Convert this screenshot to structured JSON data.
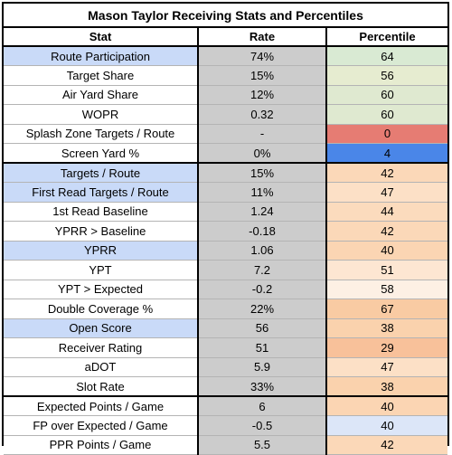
{
  "title": "Mason Taylor Receiving Stats and Percentiles",
  "headers": {
    "stat": "Stat",
    "rate": "Rate",
    "percentile": "Percentile"
  },
  "rows": [
    {
      "stat": "Route Participation",
      "rate": "74%",
      "percentile": "64",
      "stat_bg": "#c9daf8",
      "pct_bg": "#d9ead3"
    },
    {
      "stat": "Target Share",
      "rate": "15%",
      "percentile": "56",
      "stat_bg": "#ffffff",
      "pct_bg": "#e6ecd0"
    },
    {
      "stat": "Air Yard Share",
      "rate": "12%",
      "percentile": "60",
      "stat_bg": "#ffffff",
      "pct_bg": "#dfe9d0"
    },
    {
      "stat": "WOPR",
      "rate": "0.32",
      "percentile": "60",
      "stat_bg": "#ffffff",
      "pct_bg": "#dfe9d0"
    },
    {
      "stat": "Splash Zone Targets / Route",
      "rate": "-",
      "percentile": "0",
      "stat_bg": "#ffffff",
      "pct_bg": "#e67c73"
    },
    {
      "stat": "Screen Yard %",
      "rate": "0%",
      "percentile": "4",
      "stat_bg": "#ffffff",
      "pct_bg": "#4a86e8"
    },
    {
      "stat": "Targets / Route",
      "rate": "15%",
      "percentile": "42",
      "stat_bg": "#c9daf8",
      "pct_bg": "#fbd8b8"
    },
    {
      "stat": "First Read Targets / Route",
      "rate": "11%",
      "percentile": "47",
      "stat_bg": "#c9daf8",
      "pct_bg": "#fce0c6"
    },
    {
      "stat": "1st Read Baseline",
      "rate": "1.24",
      "percentile": "44",
      "stat_bg": "#ffffff",
      "pct_bg": "#fbdbbd"
    },
    {
      "stat": "YPRR > Baseline",
      "rate": "-0.18",
      "percentile": "42",
      "stat_bg": "#ffffff",
      "pct_bg": "#fbd8b8"
    },
    {
      "stat": "YPRR",
      "rate": "1.06",
      "percentile": "40",
      "stat_bg": "#c9daf8",
      "pct_bg": "#fbd5b3"
    },
    {
      "stat": "YPT",
      "rate": "7.2",
      "percentile": "51",
      "stat_bg": "#ffffff",
      "pct_bg": "#fde6d2"
    },
    {
      "stat": "YPT > Expected",
      "rate": "-0.2",
      "percentile": "58",
      "stat_bg": "#ffffff",
      "pct_bg": "#fdf0e4"
    },
    {
      "stat": "Double Coverage %",
      "rate": "22%",
      "percentile": "67",
      "stat_bg": "#ffffff",
      "pct_bg": "#f9cba3"
    },
    {
      "stat": "Open Score",
      "rate": "56",
      "percentile": "38",
      "stat_bg": "#c9daf8",
      "pct_bg": "#fad2ad"
    },
    {
      "stat": "Receiver Rating",
      "rate": "51",
      "percentile": "29",
      "stat_bg": "#ffffff",
      "pct_bg": "#f8c19a"
    },
    {
      "stat": "aDOT",
      "rate": "5.9",
      "percentile": "47",
      "stat_bg": "#ffffff",
      "pct_bg": "#fce0c6"
    },
    {
      "stat": "Slot Rate",
      "rate": "33%",
      "percentile": "38",
      "stat_bg": "#ffffff",
      "pct_bg": "#fad2ad"
    },
    {
      "stat": "Expected Points / Game",
      "rate": "6",
      "percentile": "40",
      "stat_bg": "#ffffff",
      "pct_bg": "#fbd5b3"
    },
    {
      "stat": "FP over Expected / Game",
      "rate": "-0.5",
      "percentile": "40",
      "stat_bg": "#ffffff",
      "pct_bg": "#dce6f8"
    },
    {
      "stat": "PPR Points / Game",
      "rate": "5.5",
      "percentile": "42",
      "stat_bg": "#ffffff",
      "pct_bg": "#fbd8b8"
    }
  ]
}
